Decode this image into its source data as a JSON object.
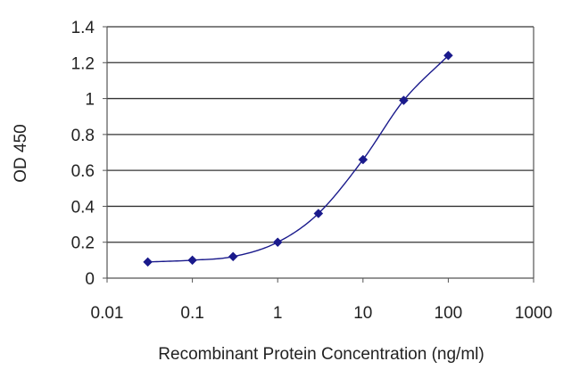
{
  "chart_data": {
    "type": "scatter",
    "title": "",
    "xlabel": "Recombinant Protein Concentration (ng/ml)",
    "ylabel": "OD 450",
    "x_scale": "log",
    "xlim": [
      0.01,
      1000
    ],
    "ylim": [
      0,
      1.4
    ],
    "x_ticks": [
      0.01,
      0.1,
      1,
      10,
      100,
      1000
    ],
    "x_tick_labels": [
      "0.01",
      "0.1",
      "1",
      "10",
      "100",
      "1000"
    ],
    "y_ticks": [
      0,
      0.2,
      0.4,
      0.6,
      0.8,
      1,
      1.2,
      1.4
    ],
    "y_tick_labels": [
      "0",
      "0.2",
      "0.4",
      "0.6",
      "0.8",
      "1",
      "1.2",
      "1.4"
    ],
    "grid": "horizontal",
    "legend": "none",
    "series": [
      {
        "x": [
          0.03,
          0.1,
          0.3,
          1,
          3,
          10,
          30,
          100
        ],
        "y": [
          0.09,
          0.1,
          0.12,
          0.2,
          0.36,
          0.66,
          0.99,
          1.24
        ],
        "marker": "diamond",
        "line": "fitted-curve",
        "color": "#1a1a8c"
      }
    ],
    "colors": {
      "series": "#1a1a8c",
      "grid": "#333333",
      "axis": "#555555",
      "text": "#222222"
    }
  }
}
